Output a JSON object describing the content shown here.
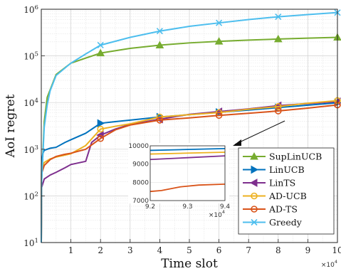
{
  "chart_data": {
    "type": "line",
    "xlabel": "Time slot",
    "ylabel": "AoI regret",
    "y_scale": "log",
    "xlim": [
      0,
      100000
    ],
    "ylim": [
      10,
      1000000
    ],
    "x_ticks": [
      "1",
      "2",
      "3",
      "4",
      "5",
      "6",
      "7",
      "8",
      "9",
      "10"
    ],
    "x_exponent_label": "×10^4",
    "y_tick_labels": [
      "10^1",
      "10^2",
      "10^3",
      "10^4",
      "10^5",
      "10^6"
    ],
    "grid": true,
    "legend_position": "bottom-right",
    "series": [
      {
        "name": "SupLinUCB",
        "color": "#77ac30",
        "marker": "triangle-up",
        "x": [
          100,
          1000,
          2000,
          5000,
          10000,
          20000,
          30000,
          40000,
          50000,
          60000,
          70000,
          80000,
          90000,
          100000
        ],
        "y": [
          200,
          4000,
          13000,
          40000,
          70000,
          115000,
          145000,
          170000,
          190000,
          205000,
          218000,
          230000,
          240000,
          250000
        ]
      },
      {
        "name": "LinUCB",
        "color": "#0072bd",
        "marker": "triangle-right",
        "x": [
          100,
          500,
          1000,
          3000,
          5000,
          8000,
          10000,
          15000,
          20000,
          25000,
          30000,
          40000,
          50000,
          60000,
          70000,
          80000,
          90000,
          100000
        ],
        "y": [
          500,
          800,
          950,
          1050,
          1100,
          1400,
          1600,
          2200,
          3600,
          3900,
          4200,
          4900,
          5500,
          6200,
          6900,
          7800,
          8800,
          9900
        ]
      },
      {
        "name": "LinTS",
        "color": "#7e2f8e",
        "marker": "triangle-left",
        "x": [
          100,
          1000,
          3000,
          5000,
          8000,
          10000,
          15000,
          17000,
          20000,
          25000,
          30000,
          40000,
          50000,
          60000,
          70000,
          80000,
          90000,
          100000
        ],
        "y": [
          150,
          230,
          280,
          320,
          400,
          470,
          550,
          1400,
          2000,
          2700,
          3400,
          4400,
          5600,
          6400,
          7300,
          8600,
          9500,
          10500
        ]
      },
      {
        "name": "AD-UCB",
        "color": "#edb120",
        "marker": "circle",
        "x": [
          100,
          1000,
          3000,
          5000,
          8000,
          10000,
          15000,
          20000,
          25000,
          30000,
          40000,
          50000,
          60000,
          70000,
          80000,
          90000,
          100000
        ],
        "y": [
          380,
          520,
          620,
          680,
          750,
          800,
          1200,
          2700,
          3100,
          3500,
          4900,
          5500,
          6100,
          7200,
          8200,
          9700,
          11000
        ]
      },
      {
        "name": "AD-TS",
        "color": "#d95319",
        "marker": "circle",
        "x": [
          100,
          1000,
          3000,
          5000,
          8000,
          10000,
          15000,
          20000,
          25000,
          30000,
          40000,
          50000,
          60000,
          70000,
          80000,
          90000,
          100000
        ],
        "y": [
          300,
          450,
          600,
          700,
          780,
          820,
          1000,
          1700,
          2600,
          3300,
          4200,
          4700,
          5300,
          5900,
          6600,
          7600,
          8900
        ]
      },
      {
        "name": "Greedy",
        "color": "#4dbeee",
        "marker": "x",
        "x": [
          100,
          1000,
          2000,
          3000,
          5000,
          8000,
          10000,
          15000,
          20000,
          30000,
          40000,
          50000,
          60000,
          70000,
          80000,
          90000,
          100000
        ],
        "y": [
          200,
          3000,
          9000,
          18000,
          38000,
          55000,
          70000,
          110000,
          170000,
          250000,
          340000,
          430000,
          510000,
          600000,
          690000,
          770000,
          850000
        ]
      }
    ],
    "inset": {
      "xlim": [
        92000,
        94000
      ],
      "ylim": [
        7000,
        10000
      ],
      "x_ticks": [
        "9.2",
        "9.3",
        "9.4"
      ],
      "y_ticks": [
        "7000",
        "8000",
        "9000",
        "10000"
      ],
      "x_exponent_label": "×10^4",
      "series": [
        {
          "name": "LinUCB",
          "color": "#0072bd",
          "x": [
            92000,
            93000,
            94000
          ],
          "y": [
            9750,
            9800,
            9850
          ]
        },
        {
          "name": "AD-UCB",
          "color": "#edb120",
          "x": [
            92000,
            93000,
            94000
          ],
          "y": [
            9550,
            9600,
            9650
          ]
        },
        {
          "name": "LinTS",
          "color": "#7e2f8e",
          "x": [
            92000,
            93000,
            94000
          ],
          "y": [
            9250,
            9350,
            9450
          ]
        },
        {
          "name": "AD-TS",
          "color": "#d95319",
          "x": [
            92000,
            92300,
            92800,
            93300,
            94000
          ],
          "y": [
            7500,
            7550,
            7750,
            7850,
            7900
          ]
        }
      ]
    }
  }
}
